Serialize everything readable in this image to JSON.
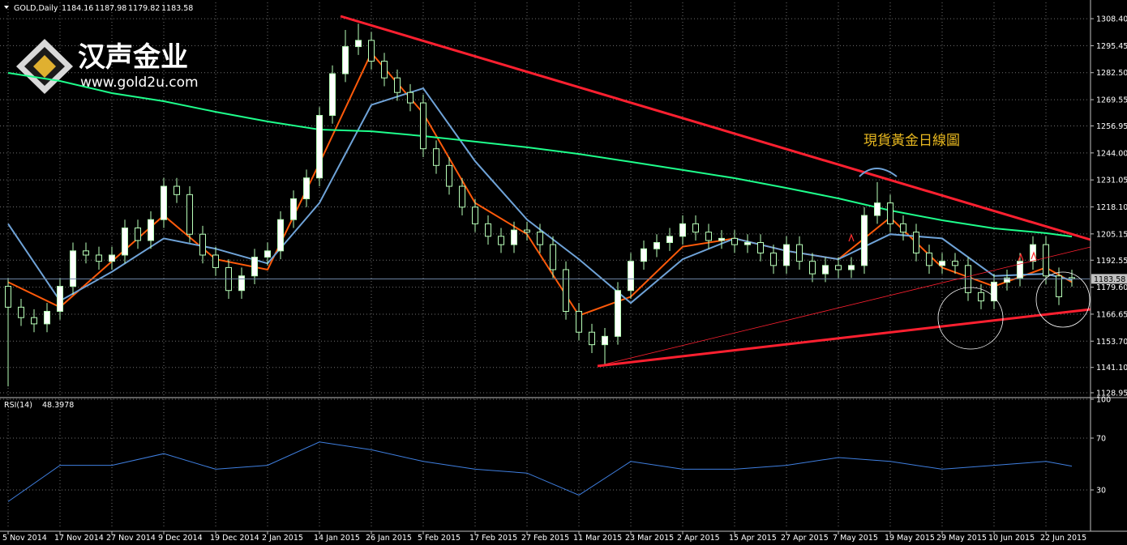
{
  "chart_data": [
    {
      "type": "candlestick",
      "title": "GOLD,Daily",
      "logo": {
        "name": "汉声金业",
        "url": "www.gold2u.com"
      },
      "annotations": [
        "現貨黃金日線圖"
      ],
      "x": [
        0,
        2,
        4,
        6,
        8,
        10,
        12,
        14,
        16,
        18,
        20,
        22,
        24,
        26,
        28,
        30,
        32,
        34,
        36,
        38,
        40,
        42,
        44,
        46,
        48,
        50,
        52,
        54,
        56,
        58,
        60,
        62,
        64,
        66,
        68,
        70,
        72,
        74,
        76,
        78,
        80,
        82,
        84,
        86,
        88,
        90,
        92,
        94,
        96,
        98,
        100,
        102,
        104,
        106,
        108,
        110,
        112,
        114,
        116,
        118,
        120,
        122,
        124,
        126,
        128,
        130,
        132,
        134,
        136,
        138,
        140,
        142,
        144,
        146,
        148,
        150,
        152,
        154,
        156,
        158,
        160,
        162,
        164
      ],
      "open": [
        1180,
        1170,
        1165,
        1162,
        1168,
        1180,
        1197,
        1195,
        1192,
        1195,
        1208,
        1202,
        1212,
        1228,
        1224,
        1205,
        1195,
        1189,
        1178,
        1185,
        1194,
        1197,
        1212,
        1222,
        1232,
        1262,
        1282,
        1295,
        1298,
        1288,
        1280,
        1273,
        1268,
        1246,
        1238,
        1228,
        1218,
        1210,
        1204,
        1200,
        1207,
        1206,
        1200,
        1188,
        1168,
        1158,
        1152,
        1156,
        1178,
        1192,
        1198,
        1201,
        1204,
        1210,
        1206,
        1202,
        1203,
        1200,
        1201,
        1196,
        1190,
        1200,
        1192,
        1186,
        1190,
        1188,
        1190,
        1214,
        1220,
        1210,
        1206,
        1196,
        1190,
        1192,
        1190,
        1177,
        1173,
        1182,
        1184,
        1192,
        1200,
        1185,
        1184.16
      ],
      "high": [
        1184,
        1174,
        1169,
        1172,
        1184,
        1201,
        1201,
        1199,
        1199,
        1212,
        1212,
        1216,
        1232,
        1232,
        1228,
        1209,
        1199,
        1193,
        1189,
        1198,
        1201,
        1216,
        1226,
        1236,
        1266,
        1286,
        1303,
        1306,
        1302,
        1292,
        1284,
        1277,
        1272,
        1250,
        1242,
        1232,
        1222,
        1214,
        1208,
        1211,
        1211,
        1210,
        1204,
        1192,
        1172,
        1162,
        1160,
        1182,
        1196,
        1202,
        1205,
        1208,
        1214,
        1214,
        1210,
        1207,
        1207,
        1205,
        1205,
        1200,
        1204,
        1204,
        1196,
        1194,
        1194,
        1194,
        1218,
        1230,
        1224,
        1214,
        1210,
        1200,
        1196,
        1196,
        1194,
        1181,
        1186,
        1188,
        1196,
        1204,
        1204,
        1189,
        1187.98
      ],
      "low": [
        1132,
        1161,
        1158,
        1158,
        1164,
        1176,
        1191,
        1188,
        1188,
        1191,
        1198,
        1198,
        1208,
        1220,
        1201,
        1191,
        1185,
        1174,
        1174,
        1181,
        1190,
        1193,
        1208,
        1218,
        1228,
        1258,
        1278,
        1291,
        1284,
        1276,
        1269,
        1264,
        1242,
        1234,
        1224,
        1214,
        1206,
        1200,
        1196,
        1196,
        1202,
        1196,
        1184,
        1164,
        1154,
        1148,
        1142,
        1152,
        1174,
        1188,
        1194,
        1197,
        1200,
        1202,
        1198,
        1198,
        1196,
        1196,
        1192,
        1186,
        1186,
        1188,
        1182,
        1182,
        1184,
        1184,
        1186,
        1210,
        1206,
        1202,
        1192,
        1186,
        1186,
        1186,
        1173,
        1169,
        1169,
        1178,
        1180,
        1188,
        1181,
        1171,
        1179.82
      ],
      "close": [
        1170,
        1165,
        1162,
        1168,
        1180,
        1197,
        1195,
        1192,
        1195,
        1208,
        1202,
        1212,
        1228,
        1224,
        1205,
        1195,
        1189,
        1178,
        1185,
        1194,
        1197,
        1212,
        1222,
        1232,
        1262,
        1282,
        1295,
        1298,
        1288,
        1280,
        1273,
        1268,
        1246,
        1238,
        1228,
        1218,
        1210,
        1204,
        1200,
        1207,
        1206,
        1200,
        1188,
        1168,
        1158,
        1152,
        1156,
        1178,
        1192,
        1198,
        1201,
        1204,
        1210,
        1206,
        1202,
        1203,
        1200,
        1201,
        1196,
        1190,
        1200,
        1192,
        1186,
        1190,
        1188,
        1190,
        1214,
        1220,
        1210,
        1206,
        1196,
        1190,
        1192,
        1190,
        1177,
        1173,
        1182,
        1184,
        1192,
        1200,
        1185,
        1175,
        1183.58
      ],
      "candle_colors": {
        "up": "#ffffff",
        "down": "#000000",
        "outline": "#b8ffb8"
      },
      "lines": [
        {
          "color": "#ff5a0a",
          "x": [
            0,
            8,
            16,
            24,
            32,
            40,
            48,
            56,
            64,
            72,
            80,
            88,
            96,
            104,
            112,
            120,
            128,
            136,
            144,
            152,
            160,
            164
          ],
          "values": [
            1182,
            1170,
            1192,
            1214,
            1193,
            1188,
            1239,
            1292,
            1263,
            1220,
            1205,
            1166,
            1175,
            1199,
            1203,
            1197,
            1193,
            1213,
            1189,
            1180,
            1189,
            1182
          ]
        },
        {
          "color": "#6fa3d8",
          "x": [
            0,
            8,
            16,
            24,
            32,
            40,
            48,
            56,
            64,
            72,
            80,
            88,
            96,
            104,
            112,
            120,
            128,
            136,
            144,
            152,
            160,
            164
          ],
          "values": [
            1210,
            1173,
            1187,
            1203,
            1198,
            1191,
            1220,
            1267,
            1275,
            1240,
            1212,
            1193,
            1172,
            1193,
            1203,
            1197,
            1193,
            1205,
            1203,
            1185,
            1186,
            1183
          ]
        },
        {
          "color": "#1eff8c",
          "x": [
            0,
            8,
            16,
            24,
            32,
            40,
            48,
            56,
            64,
            72,
            80,
            88,
            96,
            104,
            112,
            120,
            128,
            136,
            144,
            152,
            160,
            164
          ],
          "values": [
            1282.4,
            1278.5,
            1272.7,
            1268.8,
            1263.7,
            1259.1,
            1255.2,
            1254.4,
            1252.1,
            1249.4,
            1246.7,
            1243.5,
            1239.7,
            1235.8,
            1231.9,
            1227.2,
            1222.2,
            1216.4,
            1211.7,
            1207.8,
            1205.5,
            1203.9
          ]
        }
      ],
      "xlim": [
        -1.25,
        166.75
      ],
      "xticks": [
        {
          "value": 0,
          "label": "5 Nov 2014"
        },
        {
          "value": 8,
          "label": "17 Nov 2014"
        },
        {
          "value": 16,
          "label": "27 Nov 2014"
        },
        {
          "value": 24,
          "label": "9 Dec 2014"
        },
        {
          "value": 32,
          "label": "19 Dec 2014"
        },
        {
          "value": 40,
          "label": "2 Jan 2015"
        },
        {
          "value": 48,
          "label": "14 Jan 2015"
        },
        {
          "value": 56,
          "label": "26 Jan 2015"
        },
        {
          "value": 64,
          "label": "5 Feb 2015"
        },
        {
          "value": 72,
          "label": "17 Feb 2015"
        },
        {
          "value": 80,
          "label": "27 Feb 2015"
        },
        {
          "value": 88,
          "label": "11 Mar 2015"
        },
        {
          "value": 96,
          "label": "23 Mar 2015"
        },
        {
          "value": 104,
          "label": "2 Apr 2015"
        },
        {
          "value": 112,
          "label": "15 Apr 2015"
        },
        {
          "value": 120,
          "label": "27 Apr 2015"
        },
        {
          "value": 128,
          "label": "7 May 2015"
        },
        {
          "value": 136,
          "label": "19 May 2015"
        },
        {
          "value": 144,
          "label": "29 May 2015"
        },
        {
          "value": 152,
          "label": "10 Jun 2015"
        },
        {
          "value": 160,
          "label": "22 Jun 2015"
        }
      ],
      "ylim": [
        1127,
        1316.2
      ],
      "yticks": [
        {
          "value": 1308.4,
          "label": "1308.40"
        },
        {
          "value": 1295.45,
          "label": "1295.45"
        },
        {
          "value": 1282.5,
          "label": "1282.50"
        },
        {
          "value": 1269.55,
          "label": "1269.55"
        },
        {
          "value": 1256.95,
          "label": "1256.95"
        },
        {
          "value": 1244,
          "label": "1244.00"
        },
        {
          "value": 1231.05,
          "label": "1231.05"
        },
        {
          "value": 1218.1,
          "label": "1218.10"
        },
        {
          "value": 1205.15,
          "label": "1205.15"
        },
        {
          "value": 1192.55,
          "label": "1192.55"
        },
        {
          "value": 1179.6,
          "label": "1179.60"
        },
        {
          "value": 1166.65,
          "label": "1166.65"
        },
        {
          "value": 1153.7,
          "label": "1153.70"
        },
        {
          "value": 1141.1,
          "label": "1141.10"
        },
        {
          "value": 1128.95,
          "label": "1128.95"
        }
      ],
      "grid": true
    },
    {
      "type": "line",
      "title": "RSI(14)",
      "x": [
        0,
        8,
        16,
        24,
        32,
        40,
        48,
        56,
        64,
        72,
        80,
        88,
        96,
        104,
        112,
        120,
        128,
        136,
        144,
        152,
        160,
        164
      ],
      "series": [
        {
          "color": "#3f7fe0",
          "values": [
            21,
            49,
            49,
            58,
            46,
            49,
            67,
            61,
            52,
            46,
            43,
            26,
            52,
            46,
            46,
            49,
            55,
            52,
            46,
            49,
            52,
            48.3978
          ]
        }
      ],
      "xlim": [
        -1.25,
        166.75
      ],
      "ylim": [
        0,
        100
      ],
      "yticks": [
        100,
        70,
        30
      ],
      "grid": true
    }
  ]
}
